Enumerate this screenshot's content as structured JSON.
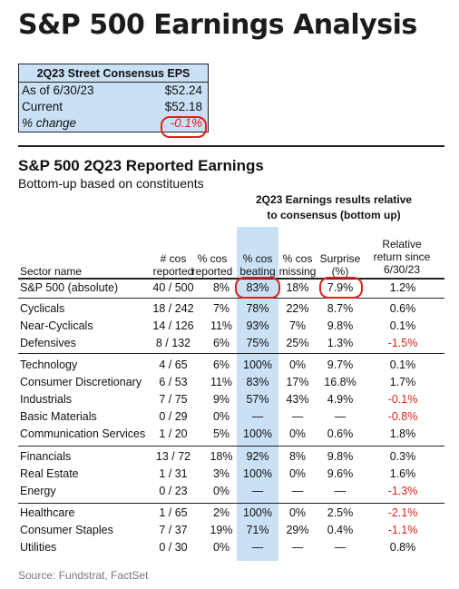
{
  "title": "S&P 500 Earnings Analysis",
  "eps_box": {
    "header": "2Q23 Street Consensus EPS",
    "rows": [
      {
        "label": "As of 6/30/23",
        "value": "$52.24"
      },
      {
        "label": "Current",
        "value": "$52.18"
      },
      {
        "label": "% change",
        "value": "-0.1%"
      }
    ]
  },
  "section": {
    "title": "S&P 500 2Q23 Reported Earnings",
    "subtitle": "Bottom-up based on constituents",
    "results_caption_1": "2Q23 Earnings results relative",
    "results_caption_2": "to consensus (bottom up)"
  },
  "columns": {
    "sector": "Sector name",
    "reported_1": "# cos",
    "reported_2": "reported",
    "pct_reported_1": "% cos",
    "pct_reported_2": "reported",
    "beating_1": "% cos",
    "beating_2": "beating",
    "missing_1": "% cos",
    "missing_2": "missing",
    "surprise_1": "Surprise",
    "surprise_2": "(%)",
    "relative_1": "Relative",
    "relative_2": "return since",
    "relative_3": "6/30/23"
  },
  "rows": [
    {
      "name": "S&P 500 (absolute)",
      "reported": "40 / 500",
      "pct_reported": "8%",
      "beating": "83%",
      "missing": "18%",
      "surprise": "7.9%",
      "relative": "1.2%"
    },
    {
      "name": "Cyclicals",
      "reported": "18 / 242",
      "pct_reported": "7%",
      "beating": "78%",
      "missing": "22%",
      "surprise": "8.7%",
      "relative": "0.6%"
    },
    {
      "name": "Near-Cyclicals",
      "reported": "14 / 126",
      "pct_reported": "11%",
      "beating": "93%",
      "missing": "7%",
      "surprise": "9.8%",
      "relative": "0.1%"
    },
    {
      "name": "Defensives",
      "reported": "8 / 132",
      "pct_reported": "6%",
      "beating": "75%",
      "missing": "25%",
      "surprise": "1.3%",
      "relative": "-1.5%"
    },
    {
      "name": "Technology",
      "reported": "4 / 65",
      "pct_reported": "6%",
      "beating": "100%",
      "missing": "0%",
      "surprise": "9.7%",
      "relative": "0.1%"
    },
    {
      "name": "Consumer Discretionary",
      "reported": "6 / 53",
      "pct_reported": "11%",
      "beating": "83%",
      "missing": "17%",
      "surprise": "16.8%",
      "relative": "1.7%"
    },
    {
      "name": "Industrials",
      "reported": "7 / 75",
      "pct_reported": "9%",
      "beating": "57%",
      "missing": "43%",
      "surprise": "4.9%",
      "relative": "-0.1%"
    },
    {
      "name": "Basic Materials",
      "reported": "0 / 29",
      "pct_reported": "0%",
      "beating": "—",
      "missing": "—",
      "surprise": "—",
      "relative": "-0.8%"
    },
    {
      "name": "Communication Services",
      "reported": "1 / 20",
      "pct_reported": "5%",
      "beating": "100%",
      "missing": "0%",
      "surprise": "0.6%",
      "relative": "1.8%"
    },
    {
      "name": "Financials",
      "reported": "13 / 72",
      "pct_reported": "18%",
      "beating": "92%",
      "missing": "8%",
      "surprise": "9.8%",
      "relative": "0.3%"
    },
    {
      "name": "Real Estate",
      "reported": "1 / 31",
      "pct_reported": "3%",
      "beating": "100%",
      "missing": "0%",
      "surprise": "9.6%",
      "relative": "1.6%"
    },
    {
      "name": "Energy",
      "reported": "0 / 23",
      "pct_reported": "0%",
      "beating": "—",
      "missing": "—",
      "surprise": "—",
      "relative": "-1.3%"
    },
    {
      "name": "Healthcare",
      "reported": "1 / 65",
      "pct_reported": "2%",
      "beating": "100%",
      "missing": "0%",
      "surprise": "2.5%",
      "relative": "-2.1%"
    },
    {
      "name": "Consumer Staples",
      "reported": "7 / 37",
      "pct_reported": "19%",
      "beating": "71%",
      "missing": "29%",
      "surprise": "0.4%",
      "relative": "-1.1%"
    },
    {
      "name": "Utilities",
      "reported": "0 / 30",
      "pct_reported": "0%",
      "beating": "—",
      "missing": "—",
      "surprise": "—",
      "relative": "0.8%"
    }
  ],
  "source": "Source: Fundstrat, FactSet",
  "colors": {
    "highlight_band": "#c9e0f5",
    "negative": "#e0211b",
    "circle": "#e0211b"
  }
}
